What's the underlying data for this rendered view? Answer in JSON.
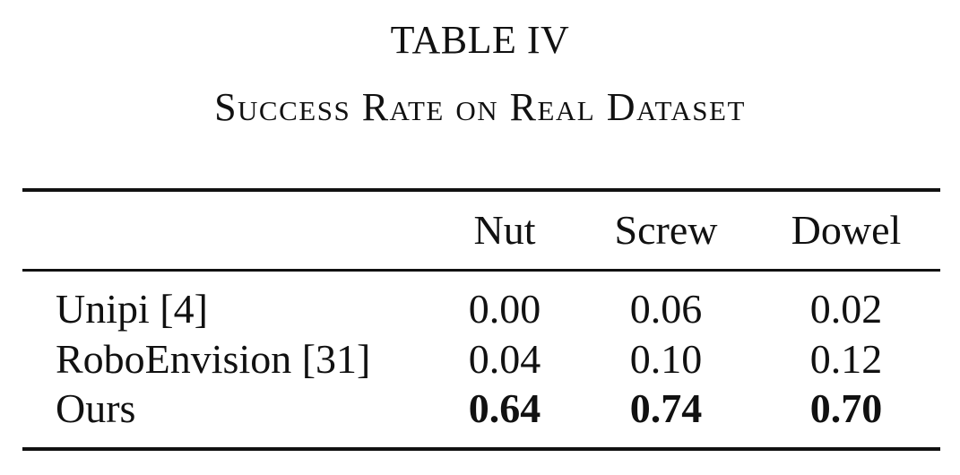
{
  "caption": {
    "number": "TABLE IV",
    "title": "Success Rate on Real Dataset"
  },
  "table": {
    "columns": [
      "Nut",
      "Screw",
      "Dowel"
    ],
    "rows": [
      {
        "method": "Unipi [4]",
        "values": [
          "0.00",
          "0.06",
          "0.02"
        ]
      },
      {
        "method": "RoboEnvision [31]",
        "values": [
          "0.04",
          "0.10",
          "0.12"
        ]
      },
      {
        "method": "Ours",
        "values": [
          "0.64",
          "0.74",
          "0.70"
        ],
        "bold": true
      }
    ]
  }
}
